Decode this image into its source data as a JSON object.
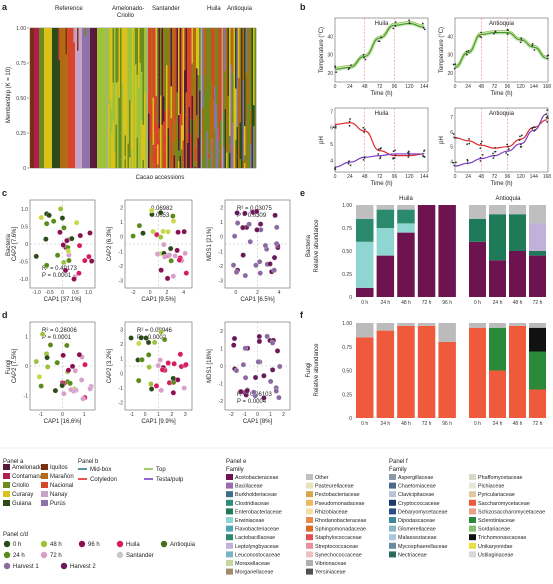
{
  "panels": {
    "a": {
      "letter": "a",
      "ylabel": "Membership (K = 10)",
      "xlabel": "Cacao accessions",
      "groups": [
        "Reference",
        "Amelonado-\nCriollo",
        "Santander",
        "Huila",
        "Antioquia"
      ],
      "yticks": [
        "0",
        "0.25",
        "0.50",
        "0.75",
        "1.00"
      ]
    },
    "b": {
      "letter": "b",
      "sites": [
        "Huila",
        "Antioquia"
      ],
      "temp_ylabel": "Temperature (°C)",
      "ph_ylabel": "pH",
      "xlabel": "Time (h)",
      "huila_xticks": [
        "0",
        "24",
        "48",
        "72",
        "96",
        "120",
        "144"
      ],
      "antioquia_xticks": [
        "0",
        "24",
        "48",
        "72",
        "96",
        "120",
        "144",
        "168"
      ],
      "temp_yticks": [
        "20",
        "30",
        "40"
      ],
      "ph_yticks": [
        "4",
        "5",
        "6",
        "7"
      ]
    },
    "c": {
      "letter": "c",
      "row_label": "Bacteria",
      "plots": [
        {
          "xlabel": "CAP1 [37.1%]",
          "ylabel": "CAP2 [7.6%]",
          "stat1": "R² = 0.49173",
          "stat2": "P = 0.0001",
          "xticks": [
            "-1.0",
            "-0.5",
            "0",
            "0.5",
            "1.0"
          ],
          "yticks": [
            "-1.0",
            "-0.5",
            "0",
            "0.5",
            "1.0"
          ]
        },
        {
          "xlabel": "CAP1 [9.5%]",
          "ylabel": "CAP2 [6.3%]",
          "stat1": "0.06982",
          "stat2": "0.0053",
          "xticks": [
            "-2",
            "0",
            "2",
            "4"
          ],
          "yticks": [
            "-3",
            "-2",
            "-1",
            "0",
            "1",
            "2"
          ]
        },
        {
          "xlabel": "CAP1 [6.5%]",
          "ylabel": "MDS1 [21%]",
          "stat1": "R² = 0.03075",
          "stat2": "P = 0.0309",
          "xticks": [
            "0",
            "2",
            "4"
          ],
          "yticks": [
            "-3",
            "-2",
            "-1",
            "0",
            "1",
            "2"
          ]
        }
      ]
    },
    "d": {
      "letter": "d",
      "row_label": "Fungi",
      "plots": [
        {
          "xlabel": "CAP1 [16.6%]",
          "ylabel": "CAP2 [7.5%]",
          "stat1": "R² = 0.26006",
          "stat2": "P = 0.0001",
          "xticks": [
            "-1",
            "0",
            "1"
          ],
          "yticks": [
            "-1",
            "0",
            "1"
          ]
        },
        {
          "xlabel": "CAP1 [9.9%]",
          "ylabel": "CAP2 [3.2%]",
          "stat1": "R² = 0.09946",
          "stat2": "P = 0.0002",
          "xticks": [
            "-1",
            "0",
            "1",
            "2",
            "3"
          ],
          "yticks": [
            "-2",
            "-1",
            "0",
            "1",
            "2",
            "3"
          ]
        },
        {
          "xlabel": "CAP1 [8%]",
          "ylabel": "MDS1 [18%]",
          "stat1": "R² = 0.06103",
          "stat2": "P = 0.0004",
          "xticks": [
            "-2",
            "-1",
            "0",
            "1",
            "2"
          ],
          "yticks": [
            "-2",
            "-1",
            "0",
            "1",
            "2"
          ]
        }
      ]
    },
    "e": {
      "letter": "e",
      "row_label": "Bacteria",
      "ylabel": "Relative abundance",
      "sites": [
        "Huila",
        "Antioquia"
      ],
      "huila_x": [
        "0 h",
        "24 h",
        "48 h",
        "72 h",
        "96 h"
      ],
      "antioquia_x": [
        "0 h",
        "24 h",
        "48 h",
        "72 h"
      ],
      "yticks": [
        "0",
        "0.25",
        "0.50",
        "0.75",
        "1.00"
      ]
    },
    "f": {
      "letter": "f",
      "row_label": "Fungi",
      "ylabel": "Relative abundance",
      "huila_x": [
        "0 h",
        "24 h",
        "48 h",
        "72 h",
        "96 h"
      ],
      "antioquia_x": [
        "0 h",
        "24 h",
        "48 h",
        "72 h"
      ],
      "yticks": [
        "0",
        "0.25",
        "0.50",
        "0.75",
        "1.00"
      ]
    }
  },
  "legends": {
    "panel_a": {
      "title": "Panel a",
      "items": [
        {
          "label": "Amelonado",
          "color": "#5a1a3a"
        },
        {
          "label": "Iquitos",
          "color": "#7a2f10"
        },
        {
          "label": "Contamana",
          "color": "#b01d50"
        },
        {
          "label": "Marañon",
          "color": "#b46a14"
        },
        {
          "label": "Criollo",
          "color": "#6d8a1d"
        },
        {
          "label": "Nacional",
          "color": "#d8452a"
        },
        {
          "label": "Curaray",
          "color": "#d9c21a"
        },
        {
          "label": "Nanay",
          "color": "#c8a3c8"
        },
        {
          "label": "Guiana",
          "color": "#2d4a1a"
        },
        {
          "label": "Purús",
          "color": "#8f72a8"
        }
      ]
    },
    "panel_b": {
      "title": "Panel b",
      "items": [
        {
          "label": "Mid-box",
          "color": "#2f7a8a"
        },
        {
          "label": "Top",
          "color": "#8ac24a"
        },
        {
          "label": "Cotyledon",
          "color": "#e02828"
        },
        {
          "label": "Testa/pulp",
          "color": "#7a3fc4"
        }
      ]
    },
    "panel_e": {
      "title": "Panel e",
      "subtitle": "Family",
      "items": [
        {
          "label": "Acetobacteraceae",
          "color": "#6d1450"
        },
        {
          "label": "Bacillaceae",
          "color": "#9b6ab0"
        },
        {
          "label": "Burkholderiaceae",
          "color": "#3a6e8c"
        },
        {
          "label": "Clostridiaceae",
          "color": "#2f8c7a"
        },
        {
          "label": "Enterobacteriaceae",
          "color": "#1f7a5a"
        },
        {
          "label": "Erwiniaceae",
          "color": "#8fd6d2"
        },
        {
          "label": "Flavobacteriaceae",
          "color": "#4ca6b4"
        },
        {
          "label": "Lactobacillaceae",
          "color": "#2b8a6e"
        },
        {
          "label": "Leptolyngbyaceae",
          "color": "#c2b0d8"
        },
        {
          "label": "Leuconostocaceae",
          "color": "#77b6c0"
        },
        {
          "label": "Moraxellaceae",
          "color": "#c6d8a0"
        },
        {
          "label": "Morganellaceae",
          "color": "#a08b6a"
        },
        {
          "label": "Other",
          "color": "#bfbfbf"
        },
        {
          "label": "Pasteurellaceae",
          "color": "#e8e2b8"
        },
        {
          "label": "Pectobacteriaceae",
          "color": "#d8a64a"
        },
        {
          "label": "Pseudomonadaceae",
          "color": "#f0b860"
        },
        {
          "label": "Rhizobiaceae",
          "color": "#f4e0a6"
        },
        {
          "label": "Rhodanobacteraceae",
          "color": "#e88a4a"
        },
        {
          "label": "Sphingomonadaceae",
          "color": "#d86a2a"
        },
        {
          "label": "Staphylococcaceae",
          "color": "#e05050"
        },
        {
          "label": "Streptococcaceae",
          "color": "#e890a0"
        },
        {
          "label": "Synechococcaceae",
          "color": "#f0c0c0"
        },
        {
          "label": "Vibrionaceae",
          "color": "#b0b0b0"
        },
        {
          "label": "Yersiniaceae",
          "color": "#505050"
        }
      ]
    },
    "panel_f": {
      "title": "Panel f",
      "subtitle": "Family",
      "items": [
        {
          "label": "Aspergillaceae",
          "color": "#8a9aa8"
        },
        {
          "label": "Chaetomiaceae",
          "color": "#4a6a8a"
        },
        {
          "label": "Clavicipitaceae",
          "color": "#b8c4d8"
        },
        {
          "label": "Cryptococcaceae",
          "color": "#1f3a6a"
        },
        {
          "label": "Debaryomycetaceae",
          "color": "#2a4a8a"
        },
        {
          "label": "Dipodascaceae",
          "color": "#3a8a9a"
        },
        {
          "label": "Glomerellaceae",
          "color": "#8ab8c8"
        },
        {
          "label": "Malasseziaceae",
          "color": "#a8c8e0"
        },
        {
          "label": "Mycosphaerellaceae",
          "color": "#6a8aa0"
        },
        {
          "label": "Nectriaceae",
          "color": "#2a6a5a"
        },
        {
          "label": "Phaffomycetaceae",
          "color": "#d8d8c8"
        },
        {
          "label": "Pichiaceae",
          "color": "#e8e8d8"
        },
        {
          "label": "Pyriculariaceae",
          "color": "#e0c8a0"
        },
        {
          "label": "Saccharomycetaceae",
          "color": "#f05a3c"
        },
        {
          "label": "Schizosaccharomycetaceae",
          "color": "#e8a088"
        },
        {
          "label": "Sclerotiniaceae",
          "color": "#2a8a3a"
        },
        {
          "label": "Sordariaceae",
          "color": "#88c070"
        },
        {
          "label": "Trichomonascaceae",
          "color": "#111111"
        },
        {
          "label": "Unikaryonidae",
          "color": "#e8e040"
        },
        {
          "label": "Ustilaginaceae",
          "color": "#d8d8d8"
        }
      ]
    },
    "panel_cd": {
      "title": "Panel c/d",
      "items": [
        {
          "label": "0 h",
          "color": "#2d4a1a"
        },
        {
          "label": "48 h",
          "color": "#9ec23a"
        },
        {
          "label": "96 h",
          "color": "#8a1050"
        },
        {
          "label": "Huila",
          "color": "#d81b60"
        },
        {
          "label": "Antioquia",
          "color": "#4a6a1a"
        },
        {
          "label": "24 h",
          "color": "#5a8a1a"
        },
        {
          "label": "72 h",
          "color": "#d8a0c8"
        },
        {
          "label": "Santander",
          "color": "#c8c8c8"
        },
        {
          "label": "Harvest 1",
          "color": "#8a6aa0"
        },
        {
          "label": "Harvest 2",
          "color": "#6a1a5a"
        }
      ]
    }
  },
  "chart_data": [
    {
      "type": "bar",
      "panel": "a",
      "title": "",
      "categories_groups": [
        "Reference",
        "Amelonado-Criollo",
        "Santander",
        "Huila",
        "Antioquia"
      ],
      "ylabel": "Membership (K = 10)",
      "xlabel": "Cacao accessions",
      "ylim": [
        0,
        1
      ]
    },
    {
      "type": "line",
      "panel": "b",
      "site": "Huila",
      "variable": "Temperature (°C)",
      "x": [
        0,
        24,
        48,
        72,
        96,
        120,
        144
      ],
      "series": [
        {
          "values": [
            22,
            23,
            29,
            39,
            46,
            47,
            45
          ]
        }
      ]
    },
    {
      "type": "line",
      "panel": "b",
      "site": "Antioquia",
      "variable": "Temperature (°C)",
      "x": [
        0,
        24,
        48,
        72,
        96,
        120,
        144,
        168
      ],
      "series": [
        {
          "values": [
            23,
            31,
            41,
            42,
            42,
            38,
            34,
            28
          ]
        }
      ]
    },
    {
      "type": "line",
      "panel": "b",
      "site": "Huila",
      "variable": "pH",
      "x": [
        0,
        24,
        48,
        72,
        96,
        120,
        144
      ],
      "series": [
        {
          "name": "Cotyledon",
          "values": [
            6.2,
            6.3,
            5.8,
            4.6,
            4.3,
            4.3,
            4.4
          ]
        },
        {
          "name": "Testa/pulp",
          "values": [
            3.6,
            3.9,
            4.2,
            4.3,
            4.4,
            4.4,
            4.4
          ]
        }
      ]
    },
    {
      "type": "line",
      "panel": "b",
      "site": "Antioquia",
      "variable": "pH",
      "x": [
        0,
        24,
        48,
        72,
        96,
        120,
        144,
        168
      ],
      "series": [
        {
          "name": "Cotyledon",
          "values": [
            5.6,
            5.4,
            5.1,
            4.9,
            5.0,
            5.5,
            6.3,
            6.8
          ]
        },
        {
          "name": "Testa/pulp",
          "values": [
            3.7,
            3.9,
            4.2,
            4.4,
            4.7,
            5.2,
            6.1,
            7.2
          ]
        }
      ]
    },
    {
      "type": "bar",
      "panel": "e",
      "stacked": true,
      "site": "Huila",
      "categories": [
        "0 h",
        "24 h",
        "48 h",
        "72 h",
        "96 h"
      ],
      "series": [
        {
          "name": "Acetobacteraceae",
          "values": [
            0.1,
            0.45,
            0.7,
            1.0,
            1.0
          ]
        },
        {
          "name": "Erwiniaceae",
          "values": [
            0.5,
            0.3,
            0.1,
            0,
            0
          ]
        },
        {
          "name": "Lactobacillaceae",
          "values": [
            0.25,
            0.2,
            0.15,
            0,
            0
          ]
        },
        {
          "name": "Other",
          "values": [
            0.15,
            0.05,
            0.05,
            0,
            0
          ]
        }
      ]
    },
    {
      "type": "bar",
      "panel": "e",
      "stacked": true,
      "site": "Antioquia",
      "categories": [
        "0 h",
        "24 h",
        "48 h",
        "72 h"
      ],
      "series": [
        {
          "name": "Acetobacteraceae",
          "values": [
            0.6,
            0.4,
            0.5,
            0.45
          ]
        },
        {
          "name": "Enterobacteriaceae",
          "values": [
            0.25,
            0.5,
            0.4,
            0.05
          ]
        },
        {
          "name": "Leptolyngbyaceae",
          "values": [
            0,
            0,
            0,
            0.3
          ]
        },
        {
          "name": "Other",
          "values": [
            0.15,
            0.1,
            0.1,
            0.2
          ]
        }
      ]
    },
    {
      "type": "bar",
      "panel": "f",
      "stacked": true,
      "site": "Huila",
      "categories": [
        "0 h",
        "24 h",
        "48 h",
        "72 h",
        "96 h"
      ],
      "series": [
        {
          "name": "Saccharomycetaceae",
          "values": [
            0.85,
            0.92,
            0.97,
            0.97,
            0.8
          ]
        },
        {
          "name": "Other",
          "values": [
            0.15,
            0.08,
            0.03,
            0.03,
            0.2
          ]
        }
      ]
    },
    {
      "type": "bar",
      "panel": "f",
      "stacked": true,
      "site": "Antioquia",
      "categories": [
        "0 h",
        "24 h",
        "48 h",
        "72 h"
      ],
      "series": [
        {
          "name": "Saccharomycetaceae",
          "values": [
            0.95,
            0.5,
            0.97,
            0.3
          ]
        },
        {
          "name": "Sclerotiniaceae",
          "values": [
            0,
            0.45,
            0,
            0.4
          ]
        },
        {
          "name": "Trichomonascaceae",
          "values": [
            0,
            0,
            0,
            0.25
          ]
        },
        {
          "name": "Other",
          "values": [
            0.05,
            0.05,
            0.03,
            0.05
          ]
        }
      ]
    }
  ]
}
